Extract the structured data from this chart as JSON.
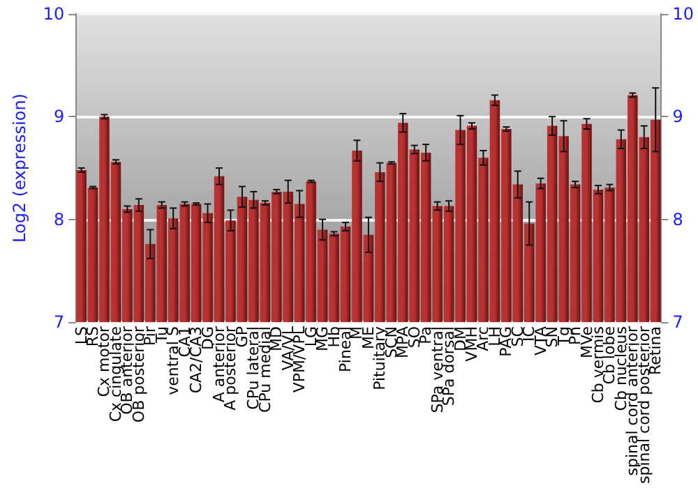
{
  "chart_data": {
    "type": "bar",
    "ylabel": "Log2 (expression)",
    "categories": [
      "LS",
      "RS",
      "Cx motor",
      "Cx cingulate",
      "OB anterior",
      "OB posterior",
      "Pir",
      "Tu",
      "ventral S",
      "CA1",
      "CA2/CA3",
      "DG",
      "A anterior",
      "A posterior",
      "GP",
      "CPu lateral",
      "CPu medial",
      "MD",
      "VA/VL",
      "VPM/VPL",
      "LG",
      "MG",
      "Hb",
      "Pineal",
      "M",
      "ME",
      "Pituitary",
      "SCN",
      "MPA",
      "SO",
      "Pa",
      "SPa ventral",
      "SPa dorsal",
      "DM",
      "VMH",
      "Arc",
      "LH",
      "PAG",
      "SC",
      "IC",
      "VTA",
      "SN",
      "Tg",
      "Pn",
      "MVe",
      "Cb vermis",
      "Cb lobe",
      "Cb nucleus",
      "spinal cord anterior",
      "spinal cord posterior",
      "Retina"
    ],
    "values": [
      8.48,
      8.31,
      9.0,
      8.56,
      8.1,
      8.14,
      7.76,
      8.14,
      8.01,
      8.15,
      8.15,
      8.06,
      8.42,
      7.99,
      8.22,
      8.19,
      8.16,
      8.27,
      8.27,
      8.15,
      8.37,
      7.9,
      7.86,
      7.93,
      8.67,
      7.85,
      8.46,
      8.55,
      8.94,
      8.68,
      8.65,
      8.13,
      8.13,
      8.87,
      8.91,
      8.6,
      9.16,
      8.88,
      8.34,
      7.96,
      8.35,
      8.91,
      8.81,
      8.34,
      8.93,
      8.29,
      8.31,
      8.78,
      9.21,
      8.8,
      8.97
    ],
    "errors": [
      0.02,
      0.01,
      0.02,
      0.02,
      0.03,
      0.06,
      0.14,
      0.03,
      0.1,
      0.02,
      0.01,
      0.09,
      0.08,
      0.1,
      0.1,
      0.08,
      0.02,
      0.02,
      0.11,
      0.13,
      0.01,
      0.1,
      0.02,
      0.04,
      0.1,
      0.17,
      0.09,
      0.01,
      0.09,
      0.04,
      0.08,
      0.04,
      0.05,
      0.14,
      0.03,
      0.07,
      0.05,
      0.02,
      0.13,
      0.21,
      0.05,
      0.09,
      0.15,
      0.03,
      0.05,
      0.04,
      0.03,
      0.09,
      0.02,
      0.11,
      0.31
    ],
    "color": "#b83232",
    "ylim": [
      7,
      10
    ],
    "yticks": [
      7,
      8,
      9,
      10
    ],
    "y2lim": [
      7,
      10
    ],
    "y2ticks": [
      7,
      8,
      9,
      10
    ],
    "grid": "y"
  }
}
